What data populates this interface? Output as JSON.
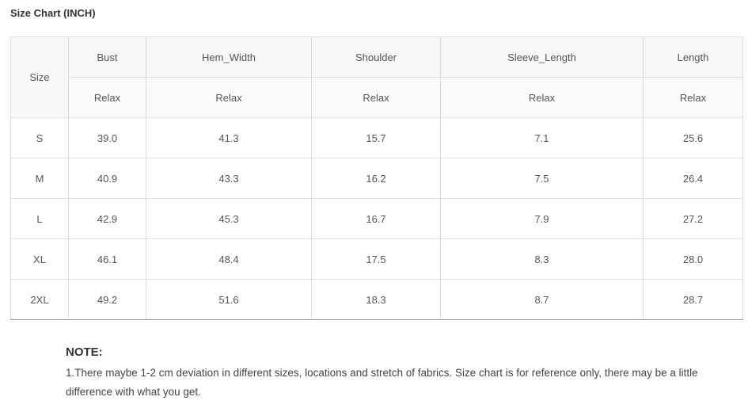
{
  "title": "Size Chart (INCH)",
  "table": {
    "size_header": "Size",
    "columns": [
      "Bust",
      "Hem_Width",
      "Shoulder",
      "Sleeve_Length",
      "Length"
    ],
    "sub_header": "Relax",
    "rows": [
      {
        "size": "S",
        "values": [
          "39.0",
          "41.3",
          "15.7",
          "7.1",
          "25.6"
        ]
      },
      {
        "size": "M",
        "values": [
          "40.9",
          "43.3",
          "16.2",
          "7.5",
          "26.4"
        ]
      },
      {
        "size": "L",
        "values": [
          "42.9",
          "45.3",
          "16.7",
          "7.9",
          "27.2"
        ]
      },
      {
        "size": "XL",
        "values": [
          "46.1",
          "48.4",
          "17.5",
          "8.3",
          "28.0"
        ]
      },
      {
        "size": "2XL",
        "values": [
          "49.2",
          "51.6",
          "18.3",
          "8.7",
          "28.7"
        ]
      }
    ]
  },
  "note": {
    "title": "NOTE:",
    "text": "1.There maybe 1-2 cm deviation in different sizes, locations and stretch of fabrics. Size chart is for reference only, there may be a little difference with what you get."
  }
}
